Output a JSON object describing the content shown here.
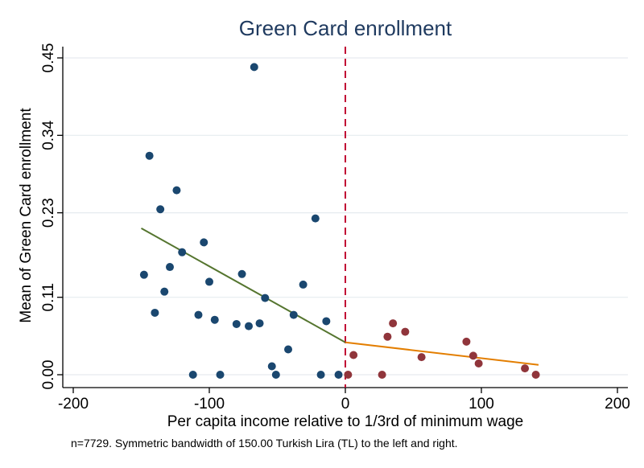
{
  "chart_data": {
    "type": "scatter",
    "title": "Green Card enrollment",
    "xlabel": "Per capita income relative to 1/3rd of minimum wage",
    "ylabel": "Mean of Green Card enrollment",
    "note": "n=7729. Symmetric bandwidth of 150.00 Turkish Lira (TL) to the left and right.",
    "xlim": [
      -200,
      200
    ],
    "ylim": [
      0,
      0.45
    ],
    "x_ticks": [
      -200,
      -100,
      0,
      100,
      200
    ],
    "x_tick_labels": [
      "-200",
      "-100",
      "0",
      "100",
      "200"
    ],
    "y_ticks": [
      0,
      0.11,
      0.23,
      0.34,
      0.45
    ],
    "y_tick_labels": [
      "0.00",
      "0.11",
      "0.23",
      "0.34",
      "0.45"
    ],
    "grid": true,
    "cutoff": 0,
    "colors": {
      "left_points": "#1a476f",
      "right_points": "#90353b",
      "left_fit": "#55752f",
      "right_fit": "#e37e00",
      "cutoff_line": "#c10534",
      "title": "#1f3a5f",
      "grid": "#e6ebef"
    },
    "series": [
      {
        "side": "left",
        "points": [
          [
            -148,
            0.142
          ],
          [
            -144,
            0.311
          ],
          [
            -140,
            0.088
          ],
          [
            -136,
            0.235
          ],
          [
            -133,
            0.118
          ],
          [
            -129,
            0.153
          ],
          [
            -124,
            0.262
          ],
          [
            -120,
            0.174
          ],
          [
            -112,
            0.0
          ],
          [
            -108,
            0.085
          ],
          [
            -104,
            0.188
          ],
          [
            -100,
            0.132
          ],
          [
            -96,
            0.078
          ],
          [
            -92,
            0.0
          ],
          [
            -80,
            0.072
          ],
          [
            -76,
            0.143
          ],
          [
            -71,
            0.069
          ],
          [
            -67,
            0.437
          ],
          [
            -63,
            0.073
          ],
          [
            -59,
            0.109
          ],
          [
            -54,
            0.012
          ],
          [
            -51,
            0.0
          ],
          [
            -42,
            0.036
          ],
          [
            -38,
            0.085
          ],
          [
            -31,
            0.128
          ],
          [
            -22,
            0.222
          ],
          [
            -18,
            0.0
          ],
          [
            -14,
            0.076
          ],
          [
            -5,
            0.0
          ]
        ]
      },
      {
        "side": "right",
        "points": [
          [
            2,
            0.0
          ],
          [
            6,
            0.028
          ],
          [
            27,
            0.0
          ],
          [
            31,
            0.054
          ],
          [
            35,
            0.073
          ],
          [
            44,
            0.061
          ],
          [
            56,
            0.025
          ],
          [
            89,
            0.047
          ],
          [
            94,
            0.027
          ],
          [
            98,
            0.016
          ],
          [
            132,
            0.009
          ],
          [
            140,
            0.0
          ]
        ]
      }
    ],
    "fit_lines": [
      {
        "side": "left",
        "x": [
          -150,
          0
        ],
        "y": [
          0.208,
          0.046
        ]
      },
      {
        "side": "right",
        "x": [
          0,
          142
        ],
        "y": [
          0.046,
          0.014
        ]
      }
    ]
  }
}
